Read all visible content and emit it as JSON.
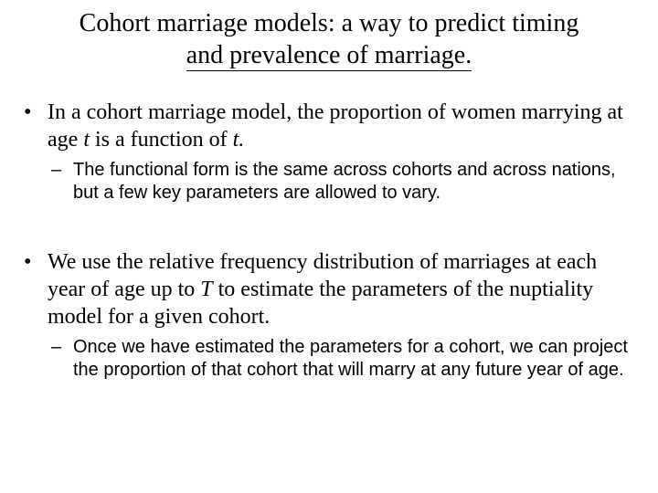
{
  "title_line1": "Cohort marriage models: a way to predict timing",
  "title_line2": "and prevalence of marriage.",
  "b1_prefix": "In a cohort marriage model, the proportion of women marrying at age ",
  "b1_t1": "t",
  "b1_mid": " is a function of ",
  "b1_t2": "t.",
  "b1_sub": "The functional form is the same across cohorts and across nations, but a few key parameters are allowed to vary.",
  "b2_prefix": "We use the relative frequency distribution of marriages at each year of age up to ",
  "b2_T": "T",
  "b2_suffix": " to estimate the parameters of the nuptiality model for a given cohort.",
  "b2_sub": "Once we have estimated the parameters for a cohort, we can project the proportion of that cohort that will marry at any future year of age.",
  "markers": {
    "dot": "•",
    "dash": "–"
  },
  "colors": {
    "text": "#000000",
    "bg": "#ffffff"
  },
  "fonts": {
    "serif": "Times New Roman",
    "sans": "Arial",
    "title_size": 28,
    "l1_size": 24,
    "l2_size": 20
  }
}
